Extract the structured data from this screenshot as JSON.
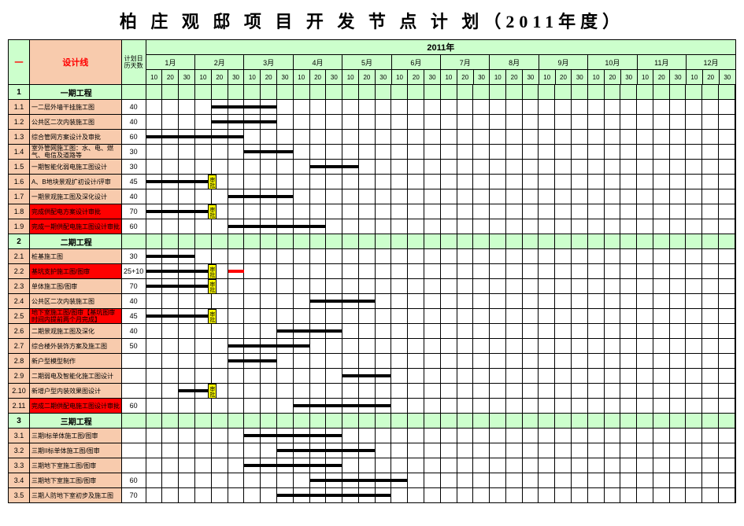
{
  "title": "柏 庄 观 邸 项 目 开 发 节 点 计 划（2011年度）",
  "headers": {
    "section_col": "一",
    "design_line": "设计线",
    "plan_days": "计划日历天数",
    "year": "2011年",
    "months": [
      "1月",
      "2月",
      "3月",
      "4月",
      "5月",
      "6月",
      "7月",
      "8月",
      "9月",
      "10月",
      "11月",
      "12月"
    ],
    "day_labels": [
      "10",
      "20",
      "30"
    ]
  },
  "colors": {
    "green_bg": "#ccffcc",
    "orange_bg": "#f8cbad",
    "red_bg": "#ff0000",
    "bar": "#000000",
    "bar_red": "#ff0000",
    "milestone_bg": "#ffff00",
    "grid": "#000000"
  },
  "sections": [
    {
      "idx": "1",
      "name": "一期工程",
      "rows": [
        {
          "idx": "1.1",
          "name": "一二层外墙干挂施工图",
          "days": "40",
          "bg": "orange",
          "bars": [
            [
              4,
              8
            ]
          ]
        },
        {
          "idx": "1.2",
          "name": "公共区二次内装施工图",
          "days": "40",
          "bg": "orange",
          "bars": [
            [
              4,
              8
            ]
          ]
        },
        {
          "idx": "1.3",
          "name": "综合管网方案设计及审批",
          "days": "60",
          "bg": "orange",
          "bars": [
            [
              0,
              6
            ]
          ]
        },
        {
          "idx": "1.4",
          "name": "室外管网施工图：水、电、燃气、电信及道路等",
          "days": "30",
          "bg": "orange",
          "bars": [
            [
              6,
              9
            ]
          ]
        },
        {
          "idx": "1.5",
          "name": "一期智能化弱电施工图设计",
          "days": "30",
          "bg": "orange",
          "bars": [
            [
              10,
              13
            ]
          ]
        },
        {
          "idx": "1.6",
          "name": "A、B地块景观扩初设计/评审",
          "days": "45",
          "bg": "orange",
          "bars": [
            [
              0,
              4
            ]
          ],
          "milestone": 4,
          "ms_label": "审批"
        },
        {
          "idx": "1.7",
          "name": "一期景观施工图及深化设计",
          "days": "40",
          "bg": "orange",
          "bars": [
            [
              5,
              9
            ]
          ]
        },
        {
          "idx": "1.8",
          "name": "完成供配电方案设计审批",
          "days": "70",
          "bg": "red",
          "bars": [
            [
              0,
              4
            ]
          ],
          "milestone": 4,
          "ms_label": "审批"
        },
        {
          "idx": "1.9",
          "name": "完成一期供配电施工图设计审批",
          "days": "60",
          "bg": "red",
          "bars": [
            [
              5,
              11
            ]
          ]
        }
      ]
    },
    {
      "idx": "2",
      "name": "二期工程",
      "rows": [
        {
          "idx": "2.1",
          "name": "桩基施工图",
          "days": "30",
          "bg": "orange",
          "bars": [
            [
              0,
              3
            ]
          ]
        },
        {
          "idx": "2.2",
          "name": "基坑支护施工图/图审",
          "days": "25+10",
          "bg": "red",
          "bars": [
            [
              0,
              2
            ],
            [
              2,
              4
            ]
          ],
          "milestone": 4,
          "ms_label": "审批",
          "redbar": [
            5,
            6
          ]
        },
        {
          "idx": "2.3",
          "name": "单体施工图/图审",
          "days": "70",
          "bg": "orange",
          "bars": [
            [
              0,
              4
            ]
          ],
          "milestone": 4,
          "ms_label": "审批"
        },
        {
          "idx": "2.4",
          "name": "公共区二次内装施工图",
          "days": "40",
          "bg": "orange",
          "bars": [
            [
              10,
              14
            ]
          ]
        },
        {
          "idx": "2.5",
          "name": "地下室施工图/图审【基坑图审时间内提前两个月完成】",
          "days": "45",
          "bg": "red",
          "bars": [
            [
              0,
              4
            ]
          ],
          "milestone": 4,
          "ms_label": "审批"
        },
        {
          "idx": "2.6",
          "name": "二期景观施工图及深化",
          "days": "40",
          "bg": "orange",
          "bars": [
            [
              8,
              12
            ]
          ]
        },
        {
          "idx": "2.7",
          "name": "综合楼外装饰方案及施工图",
          "days": "50",
          "bg": "orange",
          "bars": [
            [
              5,
              10
            ]
          ]
        },
        {
          "idx": "2.8",
          "name": "新户型模型制作",
          "days": "",
          "bg": "orange",
          "bars": [
            [
              5,
              8
            ]
          ]
        },
        {
          "idx": "2.9",
          "name": "二期弱电及智能化施工图设计",
          "days": "",
          "bg": "orange",
          "bars": [
            [
              12,
              15
            ]
          ]
        },
        {
          "idx": "2.10",
          "name": "新增户型内装效果图设计",
          "days": "",
          "bg": "orange",
          "bars": [
            [
              2,
              4
            ]
          ],
          "milestone": 4,
          "ms_label": "审批"
        },
        {
          "idx": "2.11",
          "name": "完成二期供配电施工图设计审批",
          "days": "60",
          "bg": "red",
          "bars": [
            [
              9,
              15
            ]
          ]
        }
      ]
    },
    {
      "idx": "3",
      "name": "三期工程",
      "rows": [
        {
          "idx": "3.1",
          "name": "三期I标单体施工图/图审",
          "days": "",
          "bg": "orange",
          "bars": [
            [
              6,
              12
            ]
          ]
        },
        {
          "idx": "3.2",
          "name": "三期II标单体施工图/图审",
          "days": "",
          "bg": "orange",
          "bars": [
            [
              8,
              14
            ]
          ]
        },
        {
          "idx": "3.3",
          "name": "三期地下室施工图/图审",
          "days": "",
          "bg": "orange",
          "bars": [
            [
              6,
              12
            ]
          ]
        },
        {
          "idx": "3.4",
          "name": "三期地下室施工图/图审",
          "days": "60",
          "bg": "orange",
          "bars": [
            [
              10,
              16
            ]
          ]
        },
        {
          "idx": "3.5",
          "name": "三期人防地下室初步及施工图",
          "days": "70",
          "bg": "orange",
          "bars": [
            [
              8,
              15
            ]
          ]
        }
      ]
    }
  ]
}
